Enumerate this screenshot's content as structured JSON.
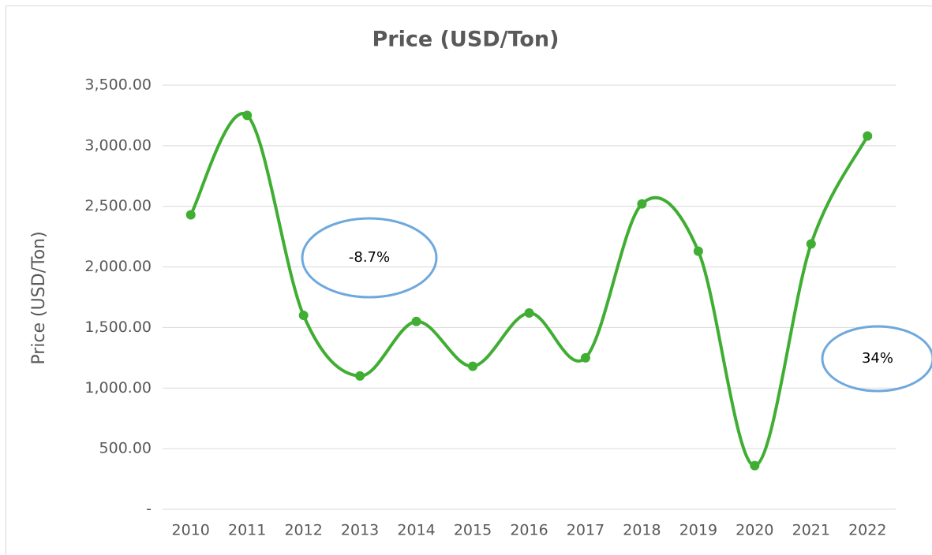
{
  "chart_data": {
    "type": "line",
    "title": "Price (USD/Ton)",
    "y_label": "Price (USD/Ton)",
    "categories": [
      "2010",
      "2011",
      "2012",
      "2013",
      "2014",
      "2015",
      "2016",
      "2017",
      "2018",
      "2019",
      "2020",
      "2021",
      "2022"
    ],
    "series": [
      {
        "name": "Price (USD/Ton)",
        "color": "#40ad33",
        "values": [
          2430,
          3250,
          1600,
          1100,
          1550,
          1180,
          1620,
          1250,
          2520,
          2130,
          360,
          2190,
          3080
        ]
      }
    ],
    "ylim": [
      0,
      3500
    ],
    "yticks": [
      {
        "value": 0,
        "label": "-"
      },
      {
        "value": 500,
        "label": "500.00"
      },
      {
        "value": 1000,
        "label": "1,000.00"
      },
      {
        "value": 1500,
        "label": "1,500.00"
      },
      {
        "value": 2000,
        "label": "2,000.00"
      },
      {
        "value": 2500,
        "label": "2,500.00"
      },
      {
        "value": 3000,
        "label": "3,000.00"
      },
      {
        "value": 3500,
        "label": "3,500.00"
      }
    ],
    "grid": true,
    "smooth": true,
    "annotations": [
      "-8.7%",
      "34%"
    ]
  }
}
